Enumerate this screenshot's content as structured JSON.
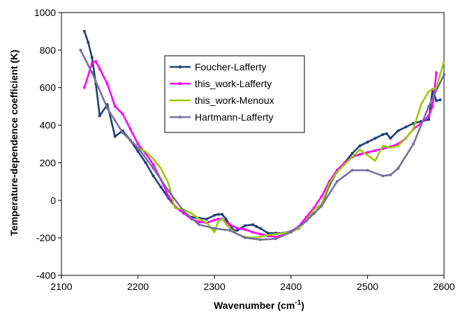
{
  "chart_data": {
    "type": "line",
    "xlabel_main": "Wavenumber (cm",
    "xlabel_sup": "-1",
    "xlabel_end": ")",
    "ylabel": "Temperature-dependence coefficient (K)",
    "xlim": [
      2100,
      2600
    ],
    "ylim": [
      -400,
      1000
    ],
    "xticks": [
      2100,
      2200,
      2300,
      2400,
      2500,
      2600
    ],
    "yticks": [
      -400,
      -200,
      0,
      200,
      400,
      600,
      800,
      1000
    ],
    "grid": false,
    "legend_position": "upper-middle",
    "series": [
      {
        "name": "Foucher-Lafferty",
        "color": "#1f3f7a",
        "marker": "dot",
        "x": [
          2130,
          2135,
          2140,
          2145,
          2150,
          2160,
          2170,
          2180,
          2190,
          2200,
          2210,
          2220,
          2230,
          2240,
          2250,
          2260,
          2270,
          2280,
          2290,
          2300,
          2305,
          2310,
          2315,
          2320,
          2325,
          2330,
          2340,
          2350,
          2355,
          2360,
          2370,
          2380,
          2390,
          2400,
          2410,
          2420,
          2430,
          2440,
          2450,
          2460,
          2470,
          2480,
          2490,
          2500,
          2510,
          2520,
          2525,
          2530,
          2540,
          2550,
          2560,
          2570,
          2580,
          2585,
          2590,
          2595
        ],
        "y": [
          900,
          840,
          760,
          620,
          450,
          510,
          340,
          370,
          320,
          260,
          200,
          130,
          70,
          10,
          -40,
          -70,
          -90,
          -95,
          -100,
          -80,
          -75,
          -75,
          -100,
          -130,
          -160,
          -160,
          -135,
          -130,
          -140,
          -150,
          -175,
          -175,
          -175,
          -165,
          -150,
          -110,
          -70,
          -30,
          80,
          150,
          200,
          250,
          290,
          310,
          330,
          350,
          355,
          330,
          370,
          390,
          410,
          420,
          430,
          590,
          530,
          535
        ]
      },
      {
        "name": "this_work-Lafferty",
        "color": "#ff00ff",
        "marker": "square",
        "x": [
          2130,
          2140,
          2145,
          2150,
          2160,
          2170,
          2180,
          2190,
          2200,
          2210,
          2220,
          2230,
          2240,
          2250,
          2260,
          2270,
          2280,
          2290,
          2300,
          2305,
          2310,
          2320,
          2330,
          2340,
          2350,
          2360,
          2370,
          2380,
          2390,
          2400,
          2410,
          2420,
          2430,
          2440,
          2450,
          2460,
          2470,
          2480,
          2490,
          2500,
          2510,
          2520,
          2530,
          2540,
          2550,
          2560,
          2570,
          2580,
          2585,
          2590
        ],
        "y": [
          600,
          730,
          740,
          700,
          620,
          500,
          460,
          380,
          300,
          250,
          190,
          110,
          20,
          -40,
          -70,
          -100,
          -115,
          -120,
          -105,
          -100,
          -100,
          -130,
          -150,
          -155,
          -170,
          -180,
          -190,
          -195,
          -185,
          -165,
          -140,
          -90,
          -40,
          20,
          100,
          160,
          200,
          230,
          245,
          255,
          265,
          275,
          285,
          300,
          330,
          380,
          410,
          450,
          500,
          680
        ]
      },
      {
        "name": "this_work-Menoux",
        "color": "#99cc00",
        "marker": "none",
        "x": [
          2200,
          2210,
          2220,
          2230,
          2240,
          2248,
          2260,
          2270,
          2280,
          2290,
          2300,
          2305,
          2310,
          2320,
          2330,
          2340,
          2350,
          2360,
          2370,
          2380,
          2390,
          2400,
          2410,
          2420,
          2430,
          2440,
          2450,
          2460,
          2470,
          2480,
          2490,
          2500,
          2510,
          2520,
          2530,
          2540,
          2550,
          2560,
          2570,
          2580,
          2590,
          2600
        ],
        "y": [
          280,
          260,
          220,
          170,
          90,
          -40,
          -50,
          -70,
          -100,
          -120,
          -170,
          -110,
          -100,
          -150,
          -180,
          -195,
          -200,
          -195,
          -185,
          -180,
          -175,
          -170,
          -150,
          -110,
          -50,
          -20,
          90,
          150,
          190,
          230,
          270,
          240,
          210,
          290,
          280,
          290,
          330,
          380,
          510,
          580,
          600,
          740
        ]
      },
      {
        "name": "Hartmann-Lafferty",
        "color": "#76709e",
        "marker": "dot",
        "x": [
          2125,
          2140,
          2160,
          2180,
          2200,
          2220,
          2240,
          2260,
          2280,
          2300,
          2320,
          2340,
          2360,
          2380,
          2400,
          2420,
          2440,
          2460,
          2480,
          2500,
          2520,
          2530,
          2540,
          2560,
          2580,
          2600
        ],
        "y": [
          800,
          680,
          490,
          360,
          280,
          170,
          50,
          -60,
          -130,
          -150,
          -160,
          -200,
          -210,
          -205,
          -170,
          -110,
          -30,
          100,
          160,
          160,
          130,
          135,
          170,
          300,
          500,
          670
        ]
      }
    ]
  }
}
